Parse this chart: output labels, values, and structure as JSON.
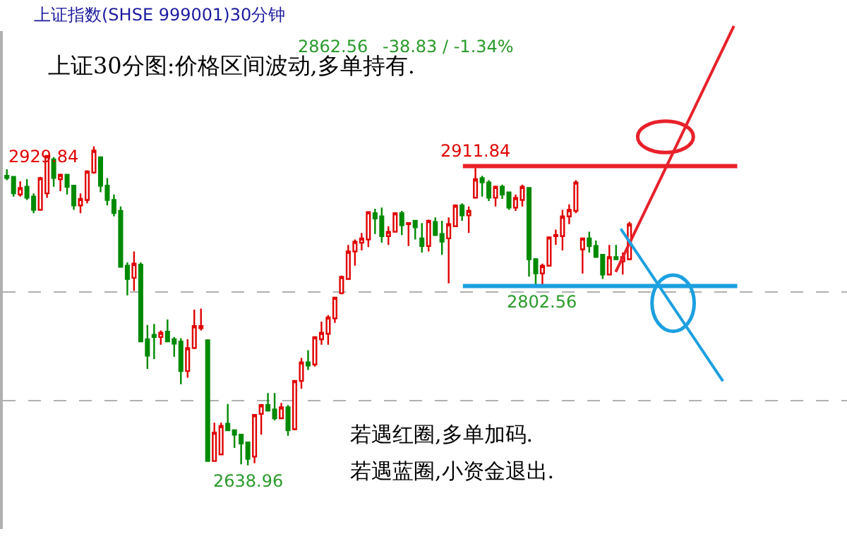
{
  "chart_data": {
    "type": "candlestick",
    "title": "上证指数(SHSE 999001)30分钟",
    "subtitle": "上证30分图:价格区间波动,多单持有.",
    "categories": [
      null,
      null,
      null,
      null,
      null,
      null,
      null,
      null,
      null,
      null,
      null,
      null,
      null,
      null,
      null,
      null,
      null,
      null,
      null,
      null,
      null,
      null,
      null,
      null,
      null,
      null,
      null,
      null,
      null,
      null,
      null,
      null,
      null,
      null,
      null,
      null,
      null,
      null,
      null,
      null,
      null,
      null,
      null,
      null,
      null,
      null,
      null,
      null,
      null,
      null,
      null,
      null,
      null,
      null,
      null,
      null,
      null,
      null,
      null,
      null,
      null,
      null,
      null,
      null,
      null,
      null,
      null,
      null,
      null,
      null,
      null,
      null,
      null,
      null,
      null,
      null,
      null,
      null,
      null,
      null,
      null,
      null,
      null,
      null,
      null,
      null,
      null,
      null,
      null,
      null,
      null,
      null,
      null,
      null
    ],
    "ohlc": [
      [
        2903,
        2909,
        2899,
        2901
      ],
      [
        2902,
        2902,
        2884,
        2887
      ],
      [
        2886,
        2898,
        2884,
        2892
      ],
      [
        2893,
        2900,
        2881,
        2883
      ],
      [
        2884,
        2887,
        2869,
        2872
      ],
      [
        2872,
        2902,
        2872,
        2901
      ],
      [
        2887,
        2922,
        2883,
        2921
      ],
      [
        2918,
        2920,
        2893,
        2901
      ],
      [
        2900,
        2905,
        2889,
        2904
      ],
      [
        2904,
        2904,
        2886,
        2893
      ],
      [
        2894,
        2894,
        2872,
        2876
      ],
      [
        2876,
        2887,
        2869,
        2882
      ],
      [
        2881,
        2908,
        2878,
        2907
      ],
      [
        2906,
        2929.84,
        2905,
        2926
      ],
      [
        2920,
        2920,
        2888,
        2894
      ],
      [
        2894,
        2901,
        2876,
        2881
      ],
      [
        2881,
        2886,
        2866,
        2869
      ],
      [
        2871,
        2875,
        2820,
        2820
      ],
      [
        2821,
        2824,
        2794,
        2809
      ],
      [
        2810,
        2834,
        2798,
        2823
      ],
      [
        2822,
        2824,
        2752,
        2752
      ],
      [
        2754,
        2767,
        2727,
        2739
      ],
      [
        2758,
        2768,
        2736,
        2756
      ],
      [
        2756,
        2762,
        2749,
        2760
      ],
      [
        2761,
        2772,
        2752,
        2752
      ],
      [
        2754,
        2756,
        2738,
        2750
      ],
      [
        2752,
        2755,
        2713,
        2725
      ],
      [
        2725,
        2754,
        2719,
        2746
      ],
      [
        2746,
        2781,
        2745,
        2766
      ],
      [
        2764,
        2782,
        2762,
        2766
      ],
      [
        2753,
        2754,
        2643,
        2643
      ],
      [
        2643,
        2678,
        2643,
        2669
      ],
      [
        2649,
        2678,
        2649,
        2675
      ],
      [
        2677,
        2695,
        2671,
        2671
      ],
      [
        2671,
        2671,
        2655,
        2667
      ],
      [
        2667,
        2667,
        2640,
        2659
      ],
      [
        2660,
        2660,
        2638.96,
        2645
      ],
      [
        2647,
        2685,
        2641,
        2685
      ],
      [
        2686,
        2695,
        2667,
        2694
      ],
      [
        2694,
        2705,
        2688,
        2689
      ],
      [
        2690,
        2705,
        2680,
        2682
      ],
      [
        2682,
        2696,
        2682,
        2692
      ],
      [
        2692,
        2694,
        2666,
        2671
      ],
      [
        2672,
        2716,
        2671,
        2716
      ],
      [
        2716,
        2737,
        2709,
        2733
      ],
      [
        2733,
        2744,
        2726,
        2730
      ],
      [
        2731,
        2756,
        2729,
        2756
      ],
      [
        2754,
        2770,
        2749,
        2760
      ],
      [
        2759,
        2776,
        2749,
        2774
      ],
      [
        2773,
        2792,
        2769,
        2792
      ],
      [
        2796,
        2812,
        2795,
        2811
      ],
      [
        2809,
        2840,
        2809,
        2834
      ],
      [
        2834,
        2845,
        2821,
        2843
      ],
      [
        2842,
        2851,
        2835,
        2846
      ],
      [
        2845,
        2870,
        2838,
        2870
      ],
      [
        2869,
        2873,
        2850,
        2864
      ],
      [
        2866,
        2874,
        2842,
        2848
      ],
      [
        2848,
        2857,
        2840,
        2852
      ],
      [
        2852,
        2869,
        2852,
        2869
      ],
      [
        2869,
        2871,
        2849,
        2858
      ],
      [
        2859,
        2860,
        2839,
        2860
      ],
      [
        2862,
        2862,
        2845,
        2856
      ],
      [
        2846,
        2860,
        2833,
        2839
      ],
      [
        2839,
        2863,
        2834,
        2862
      ],
      [
        2861,
        2865,
        2849,
        2849
      ],
      [
        2850,
        2862,
        2831,
        2843
      ],
      [
        2846,
        2865,
        2805,
        2859
      ],
      [
        2857,
        2877,
        2857,
        2876
      ],
      [
        2876,
        2878,
        2862,
        2867
      ],
      [
        2867,
        2875,
        2851,
        2871
      ],
      [
        2883,
        2911.84,
        2883,
        2900
      ],
      [
        2901,
        2903,
        2884,
        2897
      ],
      [
        2897,
        2899,
        2880,
        2883
      ],
      [
        2883,
        2894,
        2875,
        2893
      ],
      [
        2893,
        2895,
        2882,
        2886
      ],
      [
        2888,
        2888,
        2872,
        2874
      ],
      [
        2874,
        2886,
        2871,
        2883
      ],
      [
        2881,
        2895,
        2875,
        2893
      ],
      [
        2892,
        2892,
        2811,
        2827
      ],
      [
        2827,
        2828,
        2804,
        2814
      ],
      [
        2814,
        2823,
        2802.56,
        2821
      ],
      [
        2821,
        2847,
        2821,
        2847
      ],
      [
        2848,
        2854,
        2840,
        2849
      ],
      [
        2848,
        2872,
        2835,
        2866
      ],
      [
        2866,
        2877,
        2859,
        2872
      ],
      [
        2871,
        2899,
        2869,
        2897
      ],
      [
        2836,
        2846,
        2814,
        2846
      ],
      [
        2846,
        2852,
        2833,
        2839
      ],
      [
        2839,
        2844,
        2829,
        2829
      ],
      [
        2831,
        2831,
        2809,
        2813
      ],
      [
        2813,
        2840,
        2813,
        2829
      ],
      [
        2829,
        2840,
        2827,
        2827
      ],
      [
        2825,
        2833,
        2813,
        2829
      ],
      [
        2827,
        2861,
        2826,
        2859
      ]
    ],
    "colors": [
      "#008a00",
      "#008a00",
      "#e00000",
      "#008a00",
      "#008a00",
      "#e00000",
      "#e00000",
      "#008a00",
      "#e00000",
      "#008a00",
      "#008a00",
      "#e00000",
      "#e00000",
      "#e00000",
      "#008a00",
      "#008a00",
      "#008a00",
      "#008a00",
      "#008a00",
      "#e00000",
      "#008a00",
      "#008a00",
      "#008a00",
      "#e00000",
      "#008a00",
      "#008a00",
      "#008a00",
      "#e00000",
      "#e00000",
      "#e00000",
      "#008a00",
      "#e00000",
      "#e00000",
      "#008a00",
      "#008a00",
      "#008a00",
      "#008a00",
      "#e00000",
      "#e00000",
      "#008a00",
      "#008a00",
      "#e00000",
      "#008a00",
      "#e00000",
      "#e00000",
      "#008a00",
      "#e00000",
      "#e00000",
      "#e00000",
      "#e00000",
      "#e00000",
      "#e00000",
      "#e00000",
      "#e00000",
      "#e00000",
      "#008a00",
      "#008a00",
      "#e00000",
      "#e00000",
      "#008a00",
      "#e00000",
      "#008a00",
      "#008a00",
      "#e00000",
      "#008a00",
      "#008a00",
      "#e00000",
      "#e00000",
      "#008a00",
      "#e00000",
      "#e00000",
      "#008a00",
      "#008a00",
      "#e00000",
      "#008a00",
      "#008a00",
      "#e00000",
      "#e00000",
      "#008a00",
      "#008a00",
      "#e00000",
      "#e00000",
      "#e00000",
      "#e00000",
      "#e00000",
      "#e00000",
      "#e00000",
      "#008a00",
      "#008a00",
      "#008a00",
      "#e00000",
      "#008a00",
      "#e00000",
      "#e00000"
    ],
    "ylim": [
      2581,
      3035
    ],
    "yticks": [
      {
        "value": 2797,
        "label": null
      },
      {
        "value": 2698,
        "label": null
      }
    ],
    "grid": "y",
    "ref_lines": [
      {
        "axis": "y",
        "value": 2911.84,
        "color": "#e8202a"
      },
      {
        "axis": "y",
        "value": 2802.56,
        "color": "#1ca0e0"
      }
    ],
    "annotations": [
      "2862.56",
      "-38.83 / -1.34%",
      "若遇红圈,多单加码.",
      "若遇蓝圈,小资金退出.",
      "2929.84",
      {
        "text": "2911.84",
        "y": 2911.84
      },
      {
        "text": "2802.56",
        "y": 2802.56
      },
      {
        "text": "2638.96",
        "y": 2638.96
      }
    ]
  }
}
